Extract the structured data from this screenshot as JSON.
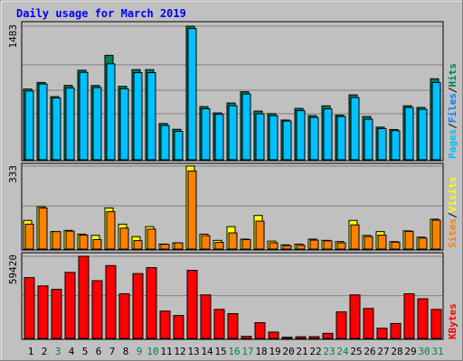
{
  "chart_data": [
    {
      "type": "bar",
      "title": "Daily usage for March 2019",
      "categories": [
        "1",
        "2",
        "3",
        "4",
        "5",
        "6",
        "7",
        "8",
        "9",
        "10",
        "11",
        "12",
        "13",
        "14",
        "15",
        "16",
        "17",
        "18",
        "19",
        "20",
        "21",
        "22",
        "23",
        "24",
        "25",
        "26",
        "27",
        "28",
        "29",
        "30",
        "31"
      ],
      "weekend_days": [
        "3",
        "9",
        "10",
        "16",
        "17",
        "23",
        "24",
        "30",
        "31"
      ],
      "ymax_label": "1483",
      "ylim": [
        0,
        1483
      ],
      "legend": [
        "Pages",
        "Files",
        "Hits"
      ],
      "series": [
        {
          "name": "Hits",
          "color": "#00805c",
          "values": [
            785,
            858,
            701,
            825,
            994,
            824,
            1159,
            815,
            1000,
            1000,
            402,
            338,
            1483,
            590,
            520,
            630,
            755,
            540,
            512,
            441,
            570,
            490,
            598,
            495,
            720,
            480,
            362,
            336,
            599,
            581,
            899
          ]
        },
        {
          "name": "Files",
          "color": "#00c0ff",
          "values": [
            763,
            841,
            686,
            797,
            970,
            801,
            1064,
            788,
            967,
            967,
            381,
            315,
            1457,
            566,
            504,
            600,
            730,
            510,
            488,
            430,
            545,
            470,
            565,
            480,
            690,
            450,
            345,
            322,
            580,
            560,
            858
          ]
        }
      ]
    },
    {
      "type": "bar",
      "ymax_label": "333",
      "ylim": [
        0,
        333
      ],
      "legend": [
        "Sites",
        "Visits"
      ],
      "series": [
        {
          "name": "Sites",
          "color": "#ffff00",
          "values": [
            115,
            170,
            70,
            75,
            60,
            55,
            165,
            100,
            50,
            90,
            20,
            25,
            333,
            60,
            35,
            90,
            40,
            135,
            32,
            17,
            20,
            40,
            35,
            30,
            115,
            55,
            70,
            30,
            73,
            48,
            120
          ]
        },
        {
          "name": "Visits",
          "color": "#ff8000",
          "values": [
            100,
            165,
            70,
            72,
            56,
            38,
            150,
            84,
            34,
            80,
            19,
            25,
            313,
            54,
            27,
            65,
            38,
            112,
            25,
            14,
            15,
            36,
            33,
            25,
            97,
            50,
            56,
            28,
            71,
            44,
            116
          ]
        }
      ]
    },
    {
      "type": "bar",
      "ymax_label": "59420",
      "ylim": [
        0,
        59420
      ],
      "legend": [
        "KBytes"
      ],
      "series": [
        {
          "name": "KBytes",
          "color": "#ff0000",
          "values": [
            44000,
            38000,
            35500,
            47800,
            59420,
            41800,
            52700,
            32300,
            46900,
            51200,
            19800,
            16600,
            49300,
            31500,
            21000,
            17900,
            1500,
            11400,
            4600,
            900,
            1200,
            1300,
            3700,
            19200,
            31500,
            21700,
            7400,
            10800,
            32300,
            28700,
            21000
          ]
        }
      ]
    }
  ]
}
